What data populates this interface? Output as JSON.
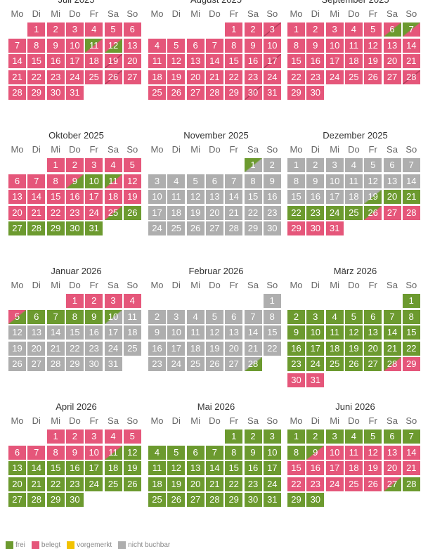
{
  "weekdays": [
    "Mo",
    "Di",
    "Mi",
    "Do",
    "Fr",
    "Sa",
    "So"
  ],
  "colors": {
    "frei": "#6c9a2f",
    "belegt": "#e5567a",
    "vorgemerkt": "#f2c200",
    "nicht_buchbar": "#aeaeae"
  },
  "legend": [
    {
      "key": "frei",
      "label": "frei",
      "color": "#6c9a2f"
    },
    {
      "key": "belegt",
      "label": "belegt",
      "color": "#e5567a"
    },
    {
      "key": "vorgemerkt",
      "label": "vorgemerkt",
      "color": "#f2c200"
    },
    {
      "key": "nicht_buchbar",
      "label": "nicht buchbar",
      "color": "#aeaeae"
    }
  ],
  "months": [
    {
      "title": "Juli 2025",
      "offset": 1,
      "days": 31,
      "states": {
        "1-10": "belegt",
        "11": "frei-belegt",
        "12": "belegt-frei",
        "13-18": "belegt",
        "19": "belegt-belegt",
        "20-25": "belegt",
        "26": "belegt-belegt",
        "27-31": "belegt"
      }
    },
    {
      "title": "August 2025",
      "offset": 4,
      "days": 31,
      "states": {
        "1-2": "belegt",
        "3": "belegt-belegt",
        "4-16": "belegt",
        "17": "belegt-belegt",
        "18-29": "belegt",
        "30": "belegt-belegt",
        "31": "belegt"
      }
    },
    {
      "title": "September 2025",
      "offset": 0,
      "days": 30,
      "states": {
        "1-5": "belegt",
        "6": "belegt-frei",
        "7": "frei-belegt",
        "8-27": "belegt",
        "28": "belegt-belegt",
        "29-30": "belegt"
      }
    },
    {
      "title": "Oktober 2025",
      "offset": 2,
      "days": 31,
      "states": {
        "1-8": "belegt",
        "9": "belegt-frei",
        "10": "frei",
        "11": "frei-belegt",
        "12-24": "belegt",
        "25": "belegt-frei",
        "26-31": "frei"
      }
    },
    {
      "title": "November 2025",
      "offset": 5,
      "days": 30,
      "states": {
        "1": "frei-nb",
        "2-30": "nb"
      }
    },
    {
      "title": "Dezember 2025",
      "offset": 0,
      "days": 31,
      "states": {
        "1-18": "nb",
        "19": "nb-frei",
        "20-25": "frei",
        "26": "frei-belegt",
        "27-31": "belegt"
      }
    },
    {
      "title": "Januar 2026",
      "offset": 3,
      "days": 31,
      "states": {
        "1-4": "belegt",
        "5": "belegt-frei",
        "6-9": "frei",
        "10": "frei-nb",
        "11-31": "nb"
      }
    },
    {
      "title": "Februar 2026",
      "offset": 6,
      "days": 28,
      "states": {
        "1-27": "nb",
        "28": "nb-frei"
      }
    },
    {
      "title": "März 2026",
      "offset": 6,
      "days": 31,
      "states": {
        "1-27": "frei",
        "28": "frei-belegt",
        "29-31": "belegt"
      }
    },
    {
      "title": "April 2026",
      "offset": 2,
      "days": 30,
      "states": {
        "1-10": "belegt",
        "11": "belegt-frei",
        "12": "frei",
        "13-30": "frei"
      }
    },
    {
      "title": "Mai 2026",
      "offset": 4,
      "days": 31,
      "states": {
        "1-31": "frei"
      }
    },
    {
      "title": "Juni 2026",
      "offset": 0,
      "days": 30,
      "states": {
        "1-8": "frei",
        "9": "frei-belegt",
        "10-26": "belegt",
        "27": "belegt-frei",
        "28-30": "frei"
      }
    }
  ]
}
